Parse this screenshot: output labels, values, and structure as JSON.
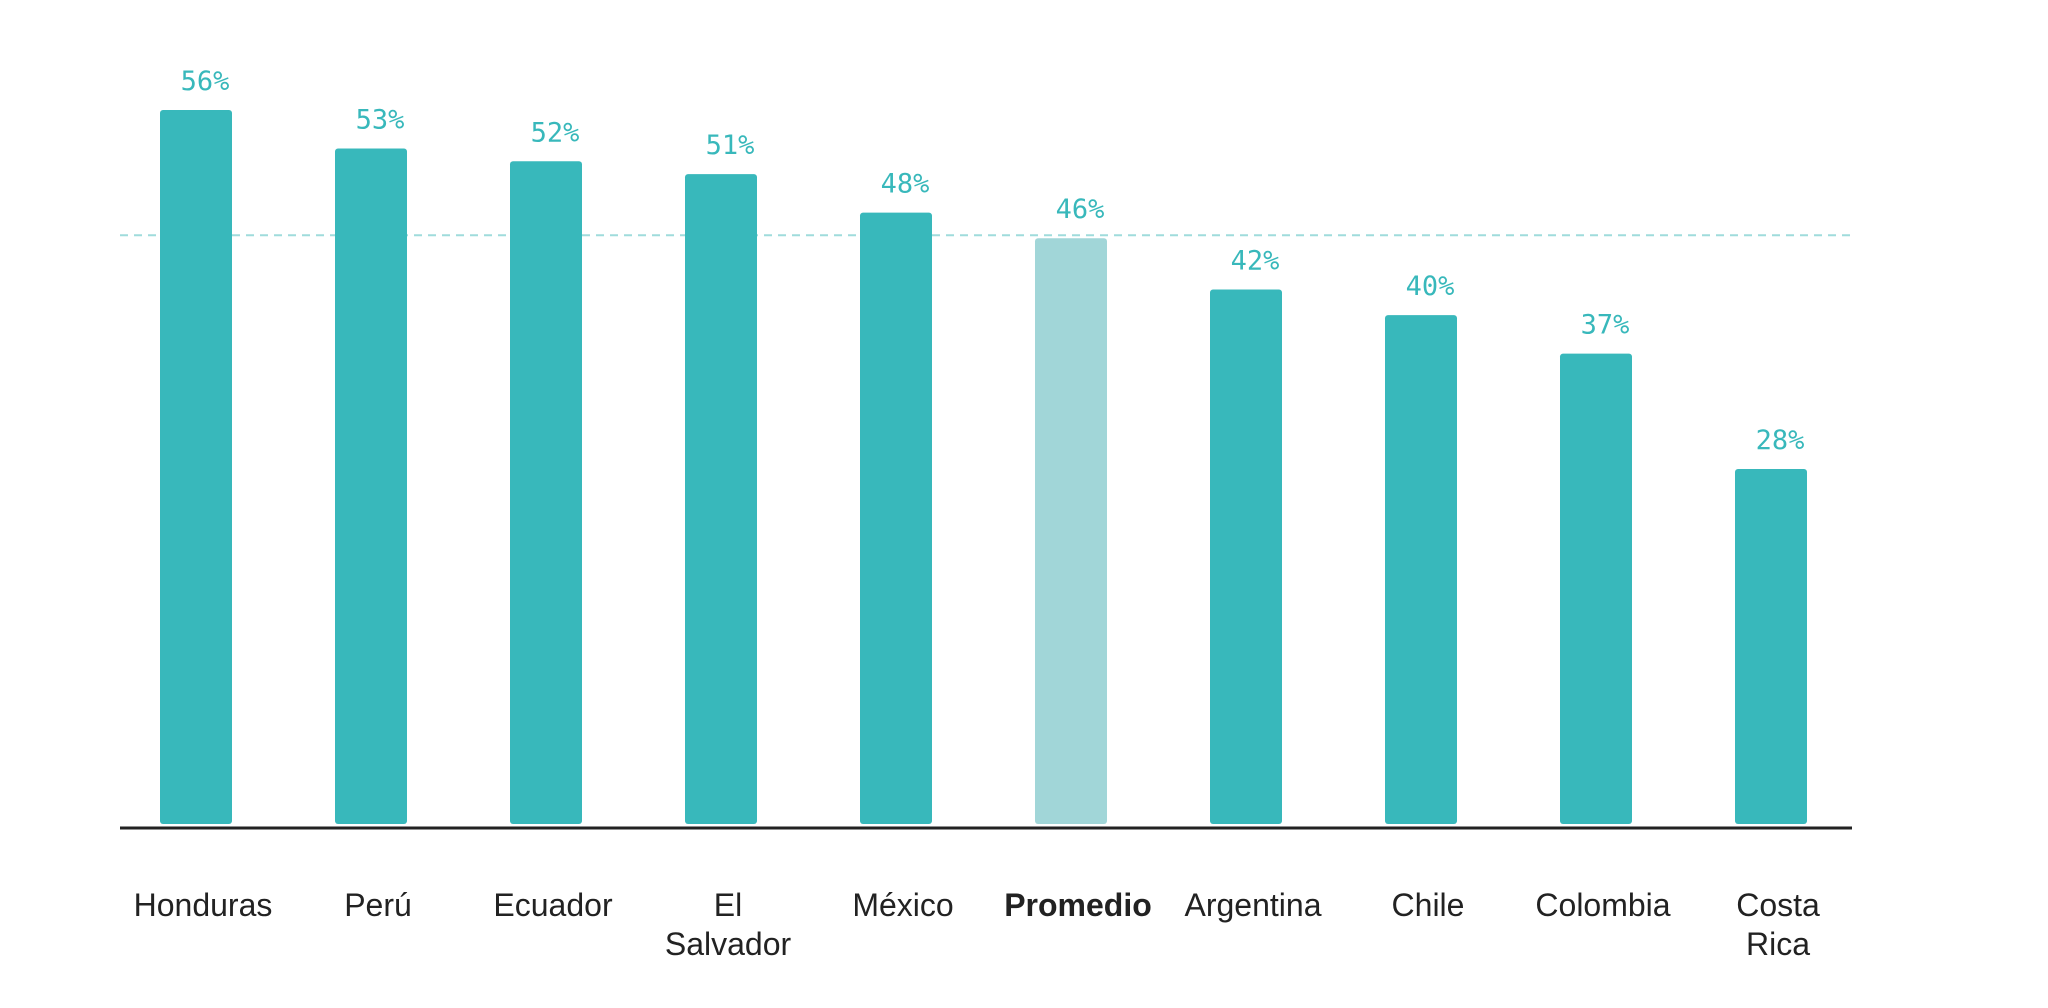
{
  "chart_data": {
    "type": "bar",
    "categories": [
      "Honduras",
      "Perú",
      "Ecuador",
      "El Salvador",
      "México",
      "Promedio",
      "Argentina",
      "Chile",
      "Colombia",
      "Costa Rica"
    ],
    "category_lines": [
      [
        "Honduras"
      ],
      [
        "Perú"
      ],
      [
        "Ecuador"
      ],
      [
        "El",
        "Salvador"
      ],
      [
        "México"
      ],
      [
        "Promedio"
      ],
      [
        "Argentina"
      ],
      [
        "Chile"
      ],
      [
        "Colombia"
      ],
      [
        "Costa",
        "Rica"
      ]
    ],
    "values": [
      56,
      53,
      52,
      51,
      48,
      46,
      42,
      40,
      37,
      28
    ],
    "data_labels": [
      "56%",
      "53%",
      "52%",
      "51%",
      "48%",
      "46%",
      "42%",
      "40%",
      "37%",
      "28%"
    ],
    "highlight_category": "Promedio",
    "reference_line": {
      "value": 46,
      "style": "dashed"
    },
    "ylim": [
      0,
      56
    ],
    "grid": false,
    "colors": {
      "bar": "#38b8bb",
      "highlight_bar": "#a1d6d8",
      "label": "#38b8bb",
      "reference_line": "#9fdcdc",
      "axis": "#222222"
    }
  }
}
